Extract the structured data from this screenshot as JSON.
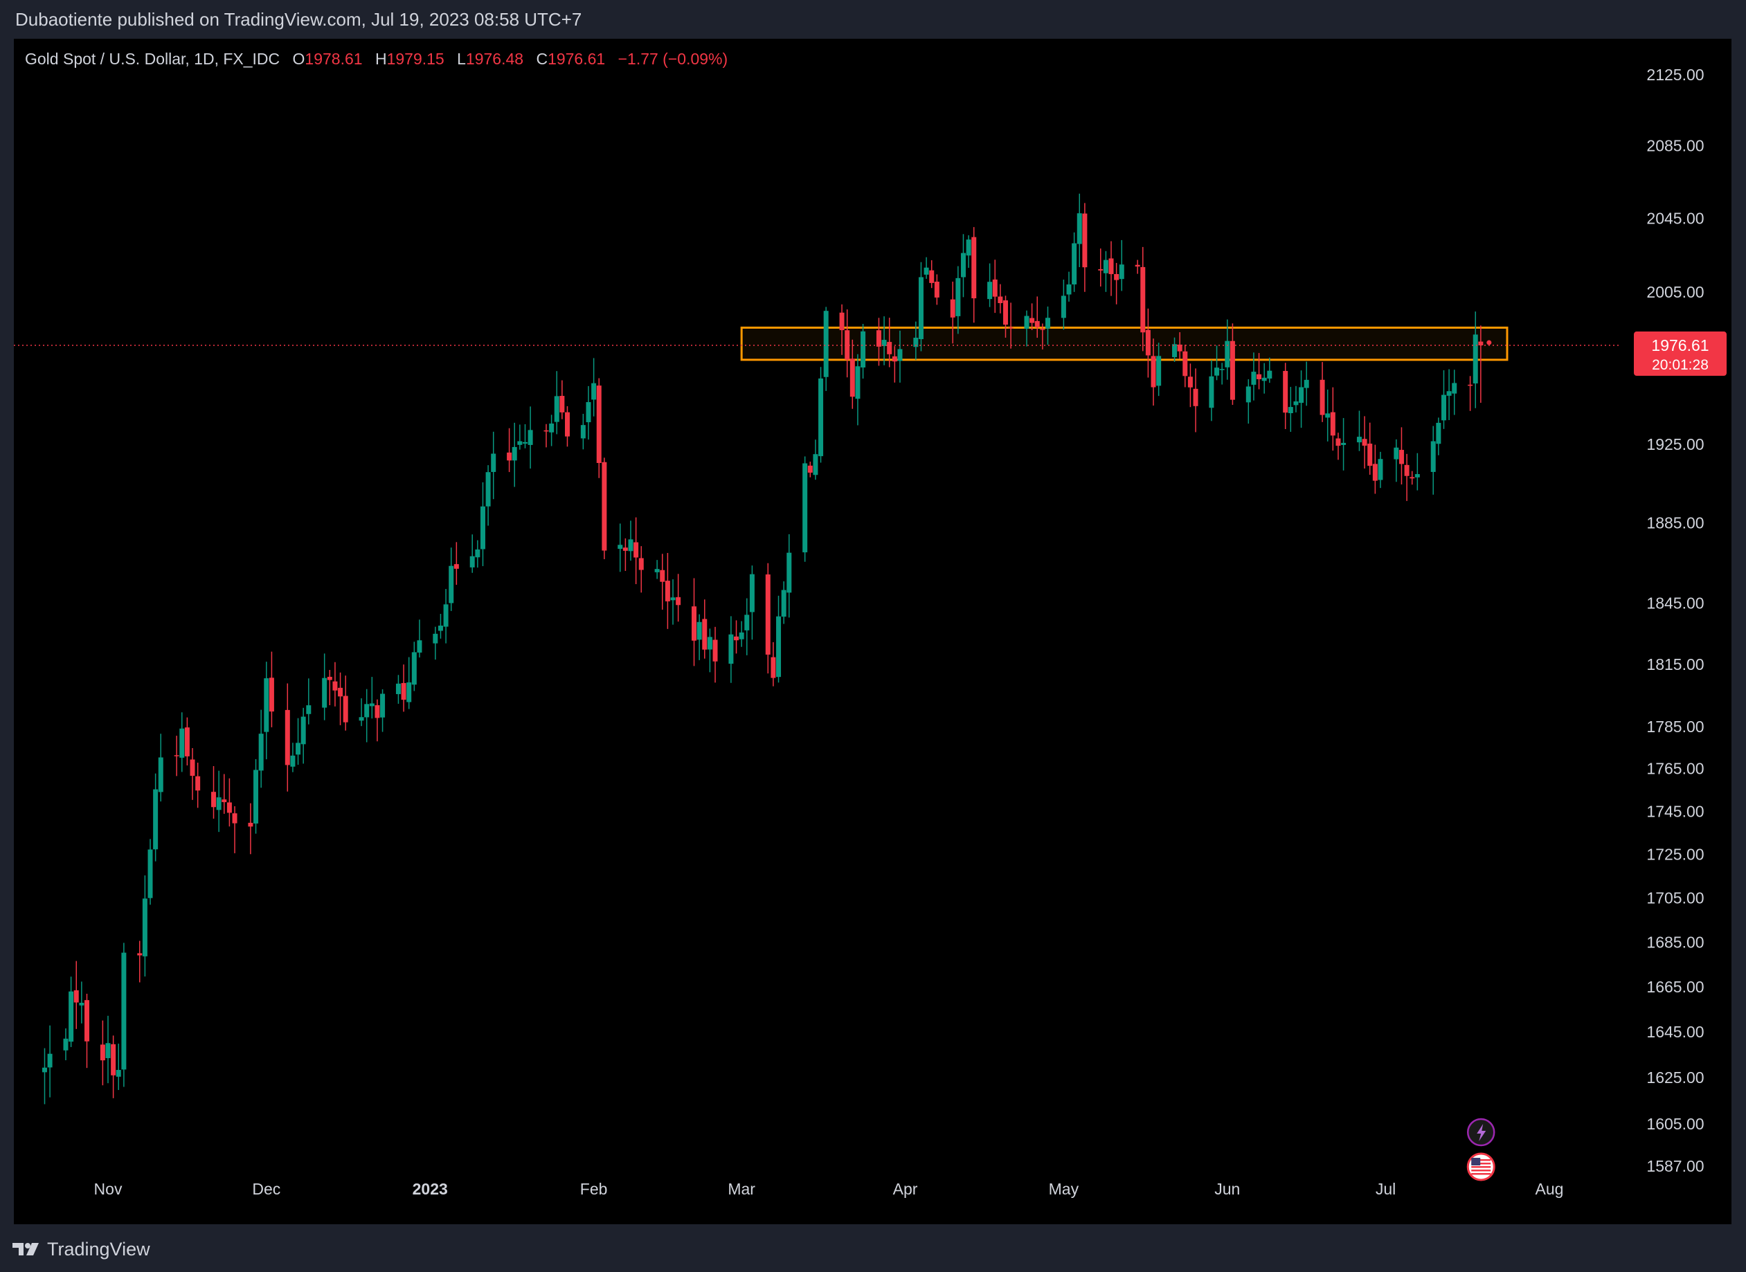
{
  "header": {
    "published_text": "Dubaotiente published on TradingView.com, Jul 19, 2023 08:58 UTC+7"
  },
  "legend": {
    "symbol": "Gold Spot / U.S. Dollar, 1D, FX_IDC",
    "open_label": "O",
    "open": "1978.61",
    "high_label": "H",
    "high": "1979.15",
    "low_label": "L",
    "low": "1976.48",
    "close_label": "C",
    "close": "1976.61",
    "change": "−1.77 (−0.09%)"
  },
  "price_tag": {
    "price": "1976.61",
    "countdown": "20:01:28"
  },
  "footer": {
    "brand": "TradingView"
  },
  "colors": {
    "up": "#089981",
    "down": "#f23645",
    "zone": "#ff9800",
    "axis_text": "#d1d4dc"
  },
  "chart_data": {
    "type": "candlestick",
    "symbol": "XAUUSD",
    "timeframe": "1D",
    "y_axis_ticks": [
      2125,
      2085,
      2045,
      2005,
      1925,
      1885,
      1845,
      1815,
      1785,
      1765,
      1745,
      1725,
      1705,
      1685,
      1665,
      1645,
      1625,
      1605,
      1587
    ],
    "x_axis_labels": [
      {
        "label": "Nov",
        "date": "2022-11-01"
      },
      {
        "label": "Dec",
        "date": "2022-12-01"
      },
      {
        "label": "2023",
        "date": "2023-01-01"
      },
      {
        "label": "Feb",
        "date": "2023-02-01"
      },
      {
        "label": "Mar",
        "date": "2023-03-01"
      },
      {
        "label": "Apr",
        "date": "2023-04-01"
      },
      {
        "label": "May",
        "date": "2023-05-01"
      },
      {
        "label": "Jun",
        "date": "2023-06-01"
      },
      {
        "label": "Jul",
        "date": "2023-07-01"
      },
      {
        "label": "Aug",
        "date": "2023-08-01"
      }
    ],
    "ylim": [
      1570,
      2140
    ],
    "y_scale": "log",
    "grid": false,
    "current_price": 1976.61,
    "resistance_zone": {
      "low": 1969,
      "high": 1986,
      "from_date": "2023-03-01",
      "to_date": "2023-07-24"
    },
    "close_path": [
      [
        "2022-10-20",
        1628
      ],
      [
        "2022-10-24",
        1648
      ],
      [
        "2022-10-26",
        1664
      ],
      [
        "2022-10-28",
        1645
      ],
      [
        "2022-11-03",
        1630
      ],
      [
        "2022-11-04",
        1675
      ],
      [
        "2022-11-07",
        1678
      ],
      [
        "2022-11-10",
        1754
      ],
      [
        "2022-11-11",
        1771
      ],
      [
        "2022-11-15",
        1778
      ],
      [
        "2022-11-18",
        1751
      ],
      [
        "2022-11-23",
        1750
      ],
      [
        "2022-11-28",
        1741
      ],
      [
        "2022-12-01",
        1802
      ],
      [
        "2022-12-05",
        1769
      ],
      [
        "2022-12-08",
        1789
      ],
      [
        "2022-12-13",
        1810
      ],
      [
        "2022-12-16",
        1793
      ],
      [
        "2022-12-19",
        1788
      ],
      [
        "2022-12-23",
        1797
      ],
      [
        "2022-12-28",
        1804
      ],
      [
        "2022-12-30",
        1824
      ],
      [
        "2023-01-03",
        1840
      ],
      [
        "2023-01-06",
        1865
      ],
      [
        "2023-01-10",
        1877
      ],
      [
        "2023-01-13",
        1920
      ],
      [
        "2023-01-16",
        1915
      ],
      [
        "2023-01-20",
        1926
      ],
      [
        "2023-01-25",
        1946
      ],
      [
        "2023-01-27",
        1928
      ],
      [
        "2023-02-01",
        1951
      ],
      [
        "2023-02-02",
        1912
      ],
      [
        "2023-02-03",
        1865
      ],
      [
        "2023-02-08",
        1874
      ],
      [
        "2023-02-14",
        1853
      ],
      [
        "2023-02-17",
        1842
      ],
      [
        "2023-02-23",
        1822
      ],
      [
        "2023-02-28",
        1826
      ],
      [
        "2023-03-03",
        1854
      ],
      [
        "2023-03-07",
        1814
      ],
      [
        "2023-03-10",
        1868
      ],
      [
        "2023-03-13",
        1913
      ],
      [
        "2023-03-15",
        1919
      ],
      [
        "2023-03-17",
        1988
      ],
      [
        "2023-03-20",
        1980
      ],
      [
        "2023-03-22",
        1945
      ],
      [
        "2023-03-24",
        1978
      ],
      [
        "2023-03-28",
        1974
      ],
      [
        "2023-03-31",
        1969
      ],
      [
        "2023-04-03",
        1984
      ],
      [
        "2023-04-04",
        2020
      ],
      [
        "2023-04-07",
        2007
      ],
      [
        "2023-04-10",
        1990
      ],
      [
        "2023-04-13",
        2040
      ],
      [
        "2023-04-14",
        2005
      ],
      [
        "2023-04-18",
        2005
      ],
      [
        "2023-04-21",
        1982
      ],
      [
        "2023-04-24",
        1989
      ],
      [
        "2023-04-28",
        1990
      ],
      [
        "2023-05-02",
        2016
      ],
      [
        "2023-05-04",
        2050
      ],
      [
        "2023-05-05",
        2016
      ],
      [
        "2023-05-08",
        2022
      ],
      [
        "2023-05-11",
        2015
      ],
      [
        "2023-05-15",
        2017
      ],
      [
        "2023-05-16",
        1990
      ],
      [
        "2023-05-18",
        1958
      ],
      [
        "2023-05-19",
        1978
      ],
      [
        "2023-05-23",
        1976
      ],
      [
        "2023-05-26",
        1946
      ],
      [
        "2023-05-30",
        1960
      ],
      [
        "2023-06-01",
        1977
      ],
      [
        "2023-06-02",
        1948
      ],
      [
        "2023-06-06",
        1963
      ],
      [
        "2023-06-09",
        1961
      ],
      [
        "2023-06-13",
        1944
      ],
      [
        "2023-06-16",
        1958
      ],
      [
        "2023-06-20",
        1936
      ],
      [
        "2023-06-23",
        1921
      ],
      [
        "2023-06-26",
        1923
      ],
      [
        "2023-06-29",
        1908
      ],
      [
        "2023-07-03",
        1921
      ],
      [
        "2023-07-06",
        1911
      ],
      [
        "2023-07-10",
        1925
      ],
      [
        "2023-07-12",
        1957
      ],
      [
        "2023-07-14",
        1955
      ],
      [
        "2023-07-17",
        1955
      ],
      [
        "2023-07-18",
        1978
      ],
      [
        "2023-07-19",
        1976.61
      ]
    ]
  }
}
